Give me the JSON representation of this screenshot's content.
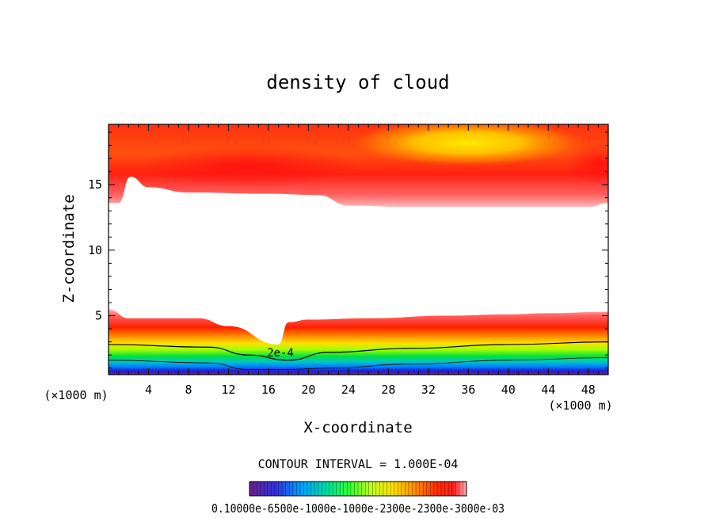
{
  "chart_data": {
    "type": "heatmap",
    "title": "density of cloud",
    "xlabel": "X-coordinate",
    "ylabel": "Z-coordinate",
    "x_unit": "(×1000 m)",
    "x_unit_right": "(×1000 m)",
    "xlim": [
      0,
      50
    ],
    "ylim": [
      0.5,
      19.6
    ],
    "x_ticks": [
      4,
      8,
      12,
      16,
      20,
      24,
      28,
      32,
      36,
      40,
      44,
      48
    ],
    "y_ticks": [
      5,
      10,
      15
    ],
    "contour_interval_text": "CONTOUR INTERVAL = 1.000E-04",
    "contour_label": "2e-4",
    "colorbar_min_label": "0.1000",
    "colorbar_labels_text": "0.10000e-6500e-1000e-1000e-2300e-2300e-3000e-03",
    "colormap": [
      "#6a2090",
      "#3030e0",
      "#00b0ff",
      "#00e060",
      "#40ff00",
      "#c8ff20",
      "#ffe000",
      "#ffa000",
      "#ff4000",
      "#ff1010",
      "#ffc8c8"
    ],
    "upper_band": {
      "z_bottom_at_x": [
        [
          0,
          13.6
        ],
        [
          1.0,
          13.6
        ],
        [
          2.2,
          15.6
        ],
        [
          4,
          14.8
        ],
        [
          8,
          14.4
        ],
        [
          16,
          14.3
        ],
        [
          21,
          14.2
        ],
        [
          24,
          13.4
        ],
        [
          30,
          13.3
        ],
        [
          40,
          13.3
        ],
        [
          48,
          13.3
        ],
        [
          50,
          13.6
        ]
      ],
      "z_top": 19.6,
      "core_levels": [
        "outer edge",
        "peak near x=36 z=18.3"
      ]
    },
    "lower_band": {
      "z_top_at_x": [
        [
          0,
          5.5
        ],
        [
          2,
          4.8
        ],
        [
          9,
          4.8
        ],
        [
          12,
          4.2
        ],
        [
          17,
          2.8
        ],
        [
          18,
          4.5
        ],
        [
          20,
          4.7
        ],
        [
          26,
          4.8
        ],
        [
          34,
          5.0
        ],
        [
          40,
          5.1
        ],
        [
          44,
          5.2
        ],
        [
          50,
          5.3
        ]
      ],
      "z_bottom": 0.5
    },
    "contour_2e4_at_x": [
      [
        0,
        2.8
      ],
      [
        10,
        2.6
      ],
      [
        14,
        2.0
      ],
      [
        18,
        1.6
      ],
      [
        22,
        2.2
      ],
      [
        30,
        2.5
      ],
      [
        40,
        2.8
      ],
      [
        50,
        3.0
      ]
    ],
    "grid": false,
    "legend": "colorbar bottom-center"
  }
}
